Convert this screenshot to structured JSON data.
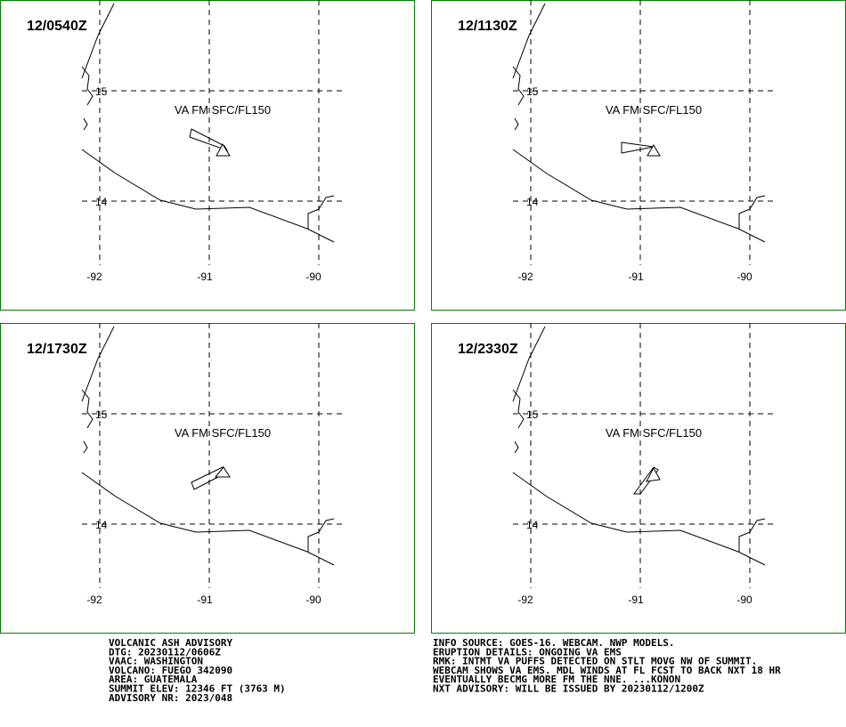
{
  "panels": [
    {
      "time": "12/0540Z",
      "label": "VA FM SFC/FL150",
      "lat_labels": [
        "15",
        "14"
      ],
      "lon_labels": [
        "-92",
        "-91",
        "-90"
      ]
    },
    {
      "time": "12/1130Z",
      "label": "VA FM SFC/FL150",
      "lat_labels": [
        "15",
        "14"
      ],
      "lon_labels": [
        "-92",
        "-91",
        "-90"
      ]
    },
    {
      "time": "12/1730Z",
      "label": "VA FM SFC/FL150",
      "lat_labels": [
        "15",
        "14"
      ],
      "lon_labels": [
        "-92",
        "-91",
        "-90"
      ]
    },
    {
      "time": "12/2330Z",
      "label": "VA FM SFC/FL150",
      "lat_labels": [
        "15",
        "14"
      ],
      "lon_labels": [
        "-92",
        "-91",
        "-90"
      ]
    }
  ],
  "advisory_left": [
    "VOLCANIC ASH ADVISORY",
    "DTG: 20230112/0606Z",
    "VAAC: WASHINGTON",
    "VOLCANO: FUEGO 342090",
    "AREA: GUATEMALA",
    "SUMMIT ELEV: 12346 FT (3763 M)",
    "ADVISORY NR: 2023/048"
  ],
  "advisory_right": [
    "INFO SOURCE: GOES-16. WEBCAM. NWP MODELS.",
    "ERUPTION DETAILS: ONGOING VA EMS",
    "RMK: INTMT VA PUFFS DETECTED ON STLT MOVG NW OF SUMMIT.",
    "WEBCAM SHOWS VA EMS. MDL WINDS AT FL FCST TO BACK NXT 18 HR",
    "EVENTUALLY BECMG MORE FM THE NNE. ...KONON",
    "NXT ADVISORY: WILL BE ISSUED BY 20230112/1200Z"
  ]
}
